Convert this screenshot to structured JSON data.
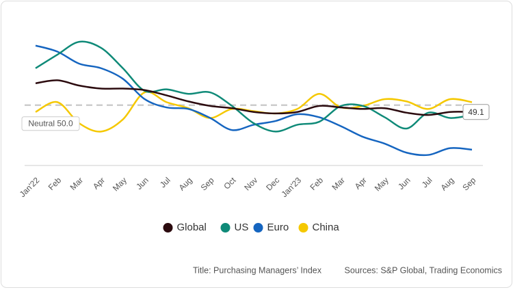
{
  "chart_data": {
    "type": "line",
    "title": "Title: Purchasing Managers’ Index",
    "source": "Sources: S&P Global, Trading Economics",
    "categories": [
      "Jan'22",
      "Feb",
      "Mar",
      "Apr",
      "May",
      "Jun",
      "Jul",
      "Aug",
      "Sep",
      "Oct",
      "Nov",
      "Dec",
      "Jan'23",
      "Feb",
      "Mar",
      "Apr",
      "May",
      "Jun",
      "Jul",
      "Aug",
      "Sep"
    ],
    "ylim": [
      42,
      60.5
    ],
    "neutral": {
      "value": 50,
      "label": "Neutral 50.0"
    },
    "legend": "bottom",
    "series": [
      {
        "name": "Global",
        "color": "#2b0a0e",
        "end_label": "49.1",
        "values": [
          52.9,
          53.3,
          52.6,
          52.2,
          52.2,
          52.0,
          51.3,
          50.5,
          49.9,
          49.6,
          49.1,
          48.9,
          49.1,
          49.9,
          49.7,
          49.5,
          49.6,
          49.0,
          48.7,
          49.1,
          49.1
        ]
      },
      {
        "name": "US",
        "color": "#0f8a78",
        "values": [
          54.9,
          56.7,
          58.4,
          57.6,
          54.9,
          51.9,
          52.1,
          51.5,
          51.7,
          49.9,
          47.6,
          46.5,
          47.4,
          47.8,
          49.9,
          49.9,
          48.4,
          46.9,
          49.0,
          48.3,
          48.7
        ]
      },
      {
        "name": "Euro",
        "color": "#1565c0",
        "values": [
          57.9,
          57.1,
          55.5,
          54.9,
          53.5,
          50.8,
          49.7,
          49.5,
          48.3,
          46.7,
          47.4,
          47.9,
          48.8,
          48.4,
          47.2,
          45.8,
          44.9,
          43.7,
          43.4,
          44.3,
          44.1
        ]
      },
      {
        "name": "China",
        "color": "#f5c800",
        "values": [
          49.1,
          50.4,
          47.6,
          46.5,
          48.1,
          51.7,
          50.4,
          49.6,
          48.3,
          49.5,
          49.2,
          48.9,
          49.5,
          51.5,
          49.7,
          49.9,
          50.8,
          50.5,
          49.5,
          50.8,
          50.4
        ]
      }
    ]
  }
}
